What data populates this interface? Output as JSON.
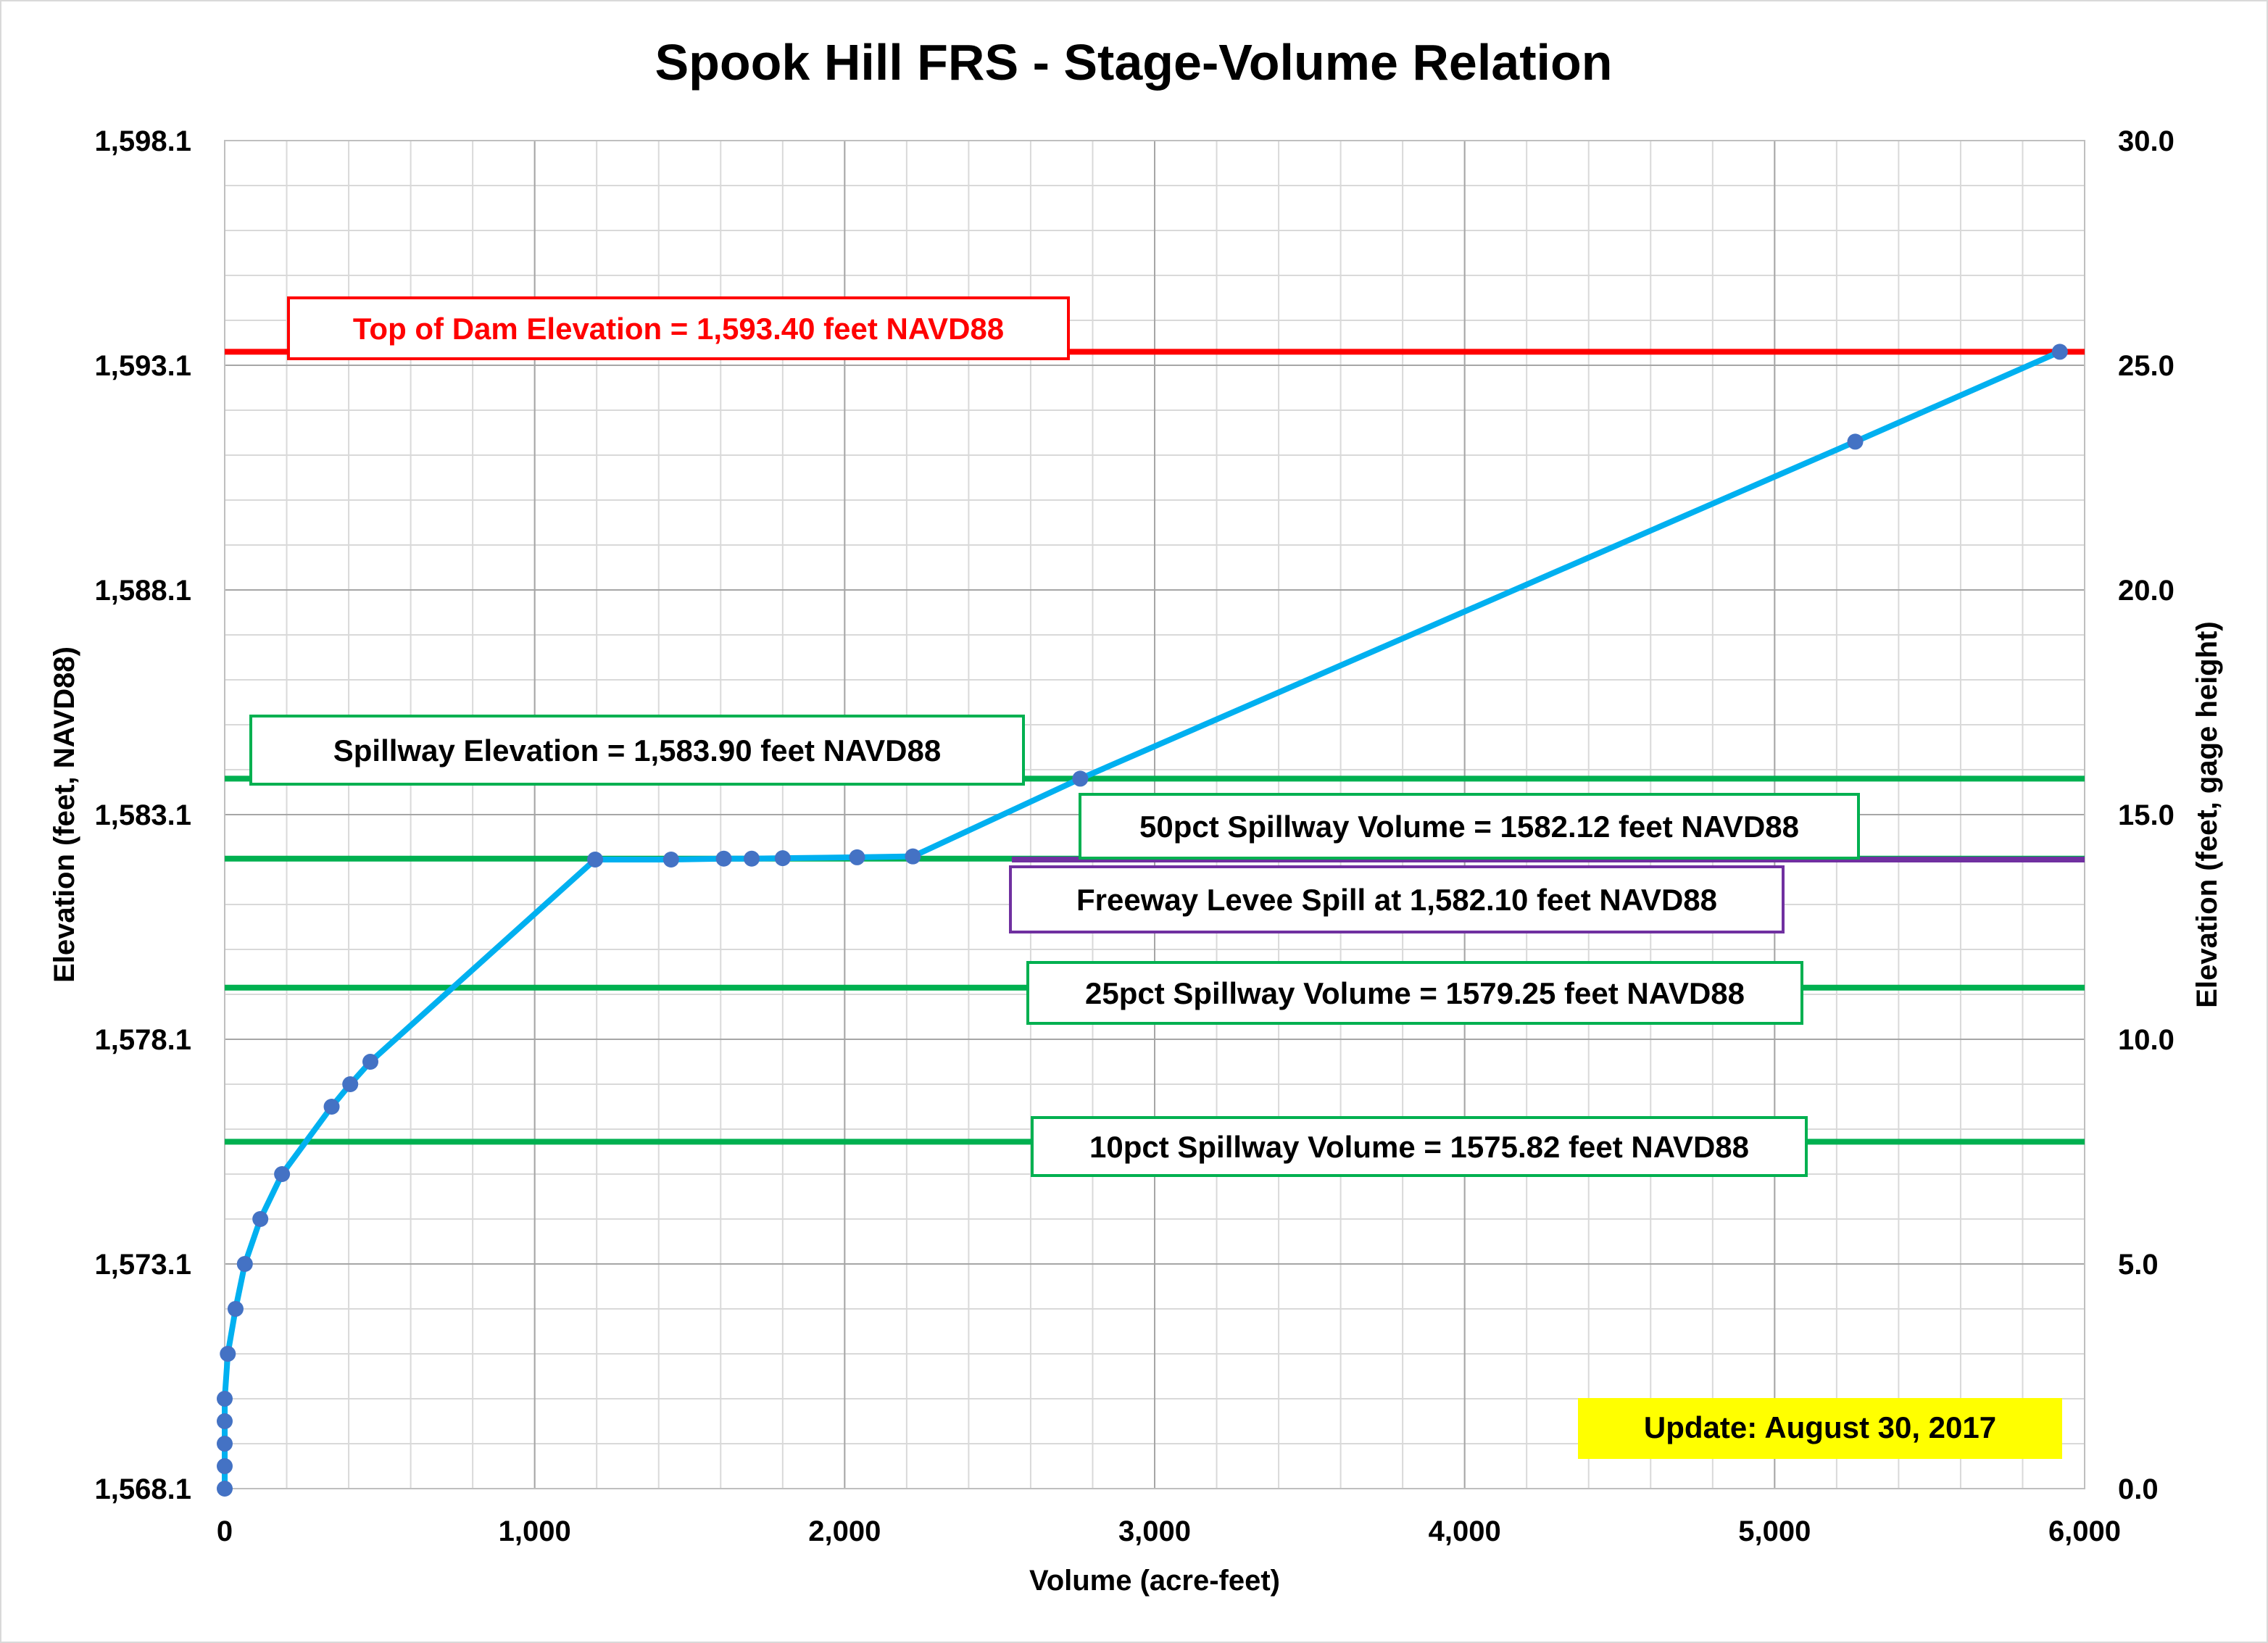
{
  "chart_data": {
    "type": "line",
    "title": "Spook Hill FRS - Stage-Volume Relation",
    "xlabel": "Volume (acre-feet)",
    "ylabel_left": "Elevation (feet, NAVD88)",
    "ylabel_right": "Elevation (feet, gage height)",
    "xlim": [
      0,
      6000
    ],
    "ylim_left": [
      1568.1,
      1598.1
    ],
    "ylim_right": [
      0.0,
      30.0
    ],
    "x_ticks": [
      "0",
      "1,000",
      "2,000",
      "3,000",
      "4,000",
      "5,000",
      "6,000"
    ],
    "y_left_ticks": [
      "1,568.1",
      "1,573.1",
      "1,578.1",
      "1,583.1",
      "1,588.1",
      "1,593.1",
      "1,598.1"
    ],
    "y_right_ticks": [
      "0.0",
      "5.0",
      "10.0",
      "15.0",
      "20.0",
      "25.0",
      "30.0"
    ],
    "grid": true,
    "series_color": "#00b0f0",
    "marker_color": "#4472c4",
    "series": [
      {
        "points": [
          [
            0,
            1568.1
          ],
          [
            0,
            1568.6
          ],
          [
            0,
            1569.1
          ],
          [
            0,
            1569.6
          ],
          [
            0,
            1570.1
          ],
          [
            10,
            1571.1
          ],
          [
            35,
            1572.1
          ],
          [
            65,
            1573.1
          ],
          [
            115,
            1574.1
          ],
          [
            185,
            1575.1
          ],
          [
            345,
            1576.6
          ],
          [
            405,
            1577.1
          ],
          [
            470,
            1577.6
          ],
          [
            1195,
            1582.1
          ],
          [
            1440,
            1582.1
          ],
          [
            1610,
            1582.12
          ],
          [
            1700,
            1582.12
          ],
          [
            1800,
            1582.13
          ],
          [
            2040,
            1582.15
          ],
          [
            2220,
            1582.17
          ],
          [
            2760,
            1583.9
          ],
          [
            5260,
            1591.4
          ],
          [
            5920,
            1593.4
          ]
        ]
      }
    ],
    "reference_lines": [
      {
        "label": "Top of Dam Elevation = 1,593.40 feet NAVD88",
        "y": 1593.4,
        "color": "#ff0000",
        "text_color": "#ff0000"
      },
      {
        "label": "Spillway Elevation = 1,583.90 feet NAVD88",
        "y": 1583.9,
        "color": "#00b050",
        "text_color": "#000000"
      },
      {
        "label": "50pct Spillway Volume = 1582.12 feet NAVD88",
        "y": 1582.12,
        "color": "#00b050",
        "text_color": "#000000"
      },
      {
        "label": "Freeway Levee Spill at 1,582.10 feet NAVD88",
        "y": 1582.1,
        "color": "#7030a0",
        "text_color": "#000000"
      },
      {
        "label": "25pct Spillway Volume = 1579.25 feet NAVD88",
        "y": 1579.25,
        "color": "#00b050",
        "text_color": "#000000"
      },
      {
        "label": "10pct Spillway Volume = 1575.82 feet NAVD88",
        "y": 1575.82,
        "color": "#00b050",
        "text_color": "#000000"
      }
    ],
    "annotation": {
      "text": "Update: August 30, 2017",
      "background": "#ffff00"
    }
  }
}
